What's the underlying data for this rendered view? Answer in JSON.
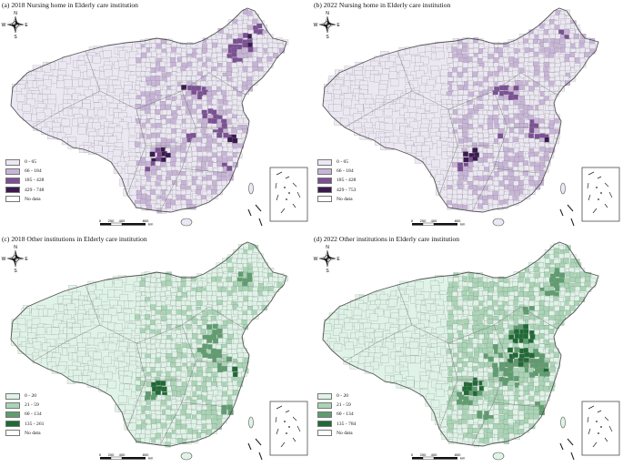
{
  "compass": {
    "n": "N",
    "s": "S",
    "e": "E",
    "w": "W"
  },
  "scale_bar": {
    "ticks": [
      "0",
      "200",
      "400",
      "800"
    ],
    "unit": "km"
  },
  "panels": [
    {
      "title": "(a) 2018 Nursing home in Elderly care institution",
      "legend": [
        {
          "label": "0  -  65",
          "color": "#ece8f3"
        },
        {
          "label": "66  -  184",
          "color": "#c8b4d8"
        },
        {
          "label": "185  -  428",
          "color": "#7c4f96"
        },
        {
          "label": "429  -  748",
          "color": "#3b1a4f"
        },
        {
          "label": "No data",
          "color": "#ffffff"
        }
      ]
    },
    {
      "title": "(b) 2022 Nursing home in Elderly care institution",
      "legend": [
        {
          "label": "0  -  65",
          "color": "#ece8f3"
        },
        {
          "label": "66  -  184",
          "color": "#c8b4d8"
        },
        {
          "label": "185  -  428",
          "color": "#7c4f96"
        },
        {
          "label": "429  -  753",
          "color": "#3b1a4f"
        },
        {
          "label": "No data",
          "color": "#ffffff"
        }
      ]
    },
    {
      "title": "(c) 2018 Other institutions in Elderly care institution",
      "legend": [
        {
          "label": "0  -  20",
          "color": "#dff3e7"
        },
        {
          "label": "21  -  59",
          "color": "#a8d5b5"
        },
        {
          "label": "60  -  134",
          "color": "#5e9e6e"
        },
        {
          "label": "135  -  261",
          "color": "#1f6a35"
        },
        {
          "label": "No data",
          "color": "#ffffff"
        }
      ]
    },
    {
      "title": "(d) 2022 Other institutions in Elderly care institution",
      "legend": [
        {
          "label": "0  -  20",
          "color": "#dff3e7"
        },
        {
          "label": "21  -  59",
          "color": "#a8d5b5"
        },
        {
          "label": "60  -  134",
          "color": "#5e9e6e"
        },
        {
          "label": "135  -  784",
          "color": "#1f6a35"
        },
        {
          "label": "No data",
          "color": "#ffffff"
        }
      ]
    }
  ]
}
